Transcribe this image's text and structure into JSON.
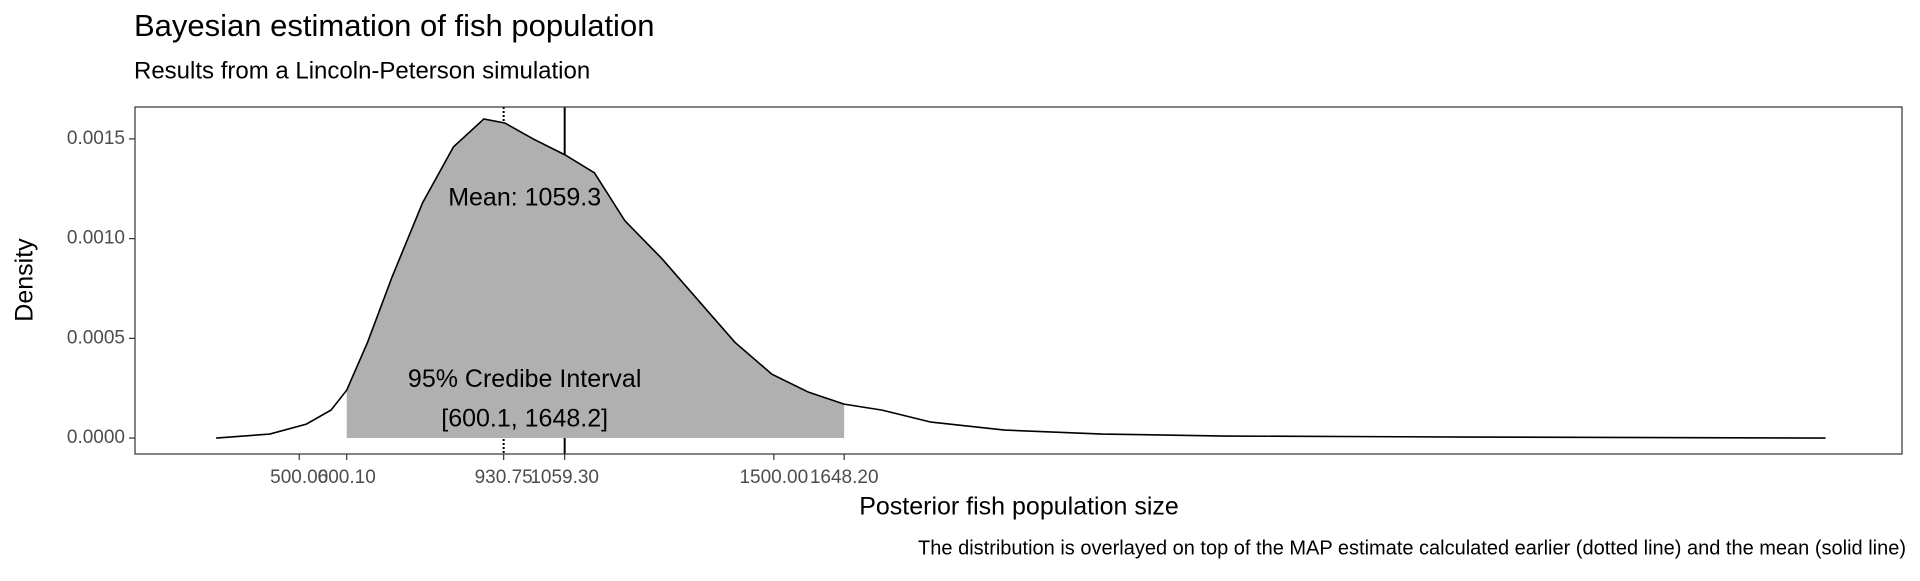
{
  "chart_data": {
    "type": "density",
    "title": "Bayesian estimation of fish population",
    "subtitle": "Results from a Lincoln-Peterson simulation",
    "xlabel": "Posterior fish population size",
    "ylabel": "Density",
    "caption": "The distribution is overlayed on top of the MAP estimate calculated earlier (dotted line) and the mean (solid line)",
    "x": [
      325,
      438,
      515,
      567,
      600,
      644,
      696,
      760,
      825,
      889,
      933,
      993,
      1060,
      1122,
      1186,
      1264,
      1341,
      1418,
      1496,
      1573,
      1648,
      1728,
      1831,
      1986,
      2192,
      2450,
      2966,
      3716
    ],
    "values": [
      0,
      2e-05,
      7e-05,
      0.00014,
      0.00024,
      0.00048,
      0.00081,
      0.00118,
      0.00146,
      0.0016,
      0.00158,
      0.0015,
      0.00142,
      0.00133,
      0.00109,
      0.0009,
      0.00069,
      0.00048,
      0.00032,
      0.00023,
      0.00017,
      0.00014,
      8e-05,
      4e-05,
      2e-05,
      1e-05,
      5e-06,
      0
    ],
    "line_color": "#000000",
    "fill_color": "#b0b0b0",
    "ci": [
      600.1,
      1648.2
    ],
    "vlines": [
      {
        "value": 930.75,
        "style": "dotted"
      },
      {
        "value": 1059.3,
        "style": "solid"
      }
    ],
    "annotations": [
      {
        "text": "Mean: 1059.3",
        "x": 975,
        "y": 0.0012
      },
      {
        "text": "95% Credibe Interval",
        "x": 975,
        "y": 0.00029
      },
      {
        "text": "[600.1, 1648.2]",
        "x": 975,
        "y": 9e-05
      }
    ],
    "xlim": [
      154,
      3877
    ],
    "ylim": [
      -8e-05,
      0.00166
    ],
    "xticks": [
      {
        "value": 500,
        "label": "500.00"
      },
      {
        "value": 600.1,
        "label": "600.10"
      },
      {
        "value": 930.75,
        "label": "930.75"
      },
      {
        "value": 1059.3,
        "label": "1059.30"
      },
      {
        "value": 1500,
        "label": "1500.00"
      },
      {
        "value": 1648.2,
        "label": "1648.20"
      }
    ],
    "yticks": [
      {
        "value": 0,
        "label": "0.0000"
      },
      {
        "value": 0.0005,
        "label": "0.0005"
      },
      {
        "value": 0.001,
        "label": "0.0010"
      },
      {
        "value": 0.0015,
        "label": "0.0015"
      }
    ],
    "grid": false
  }
}
